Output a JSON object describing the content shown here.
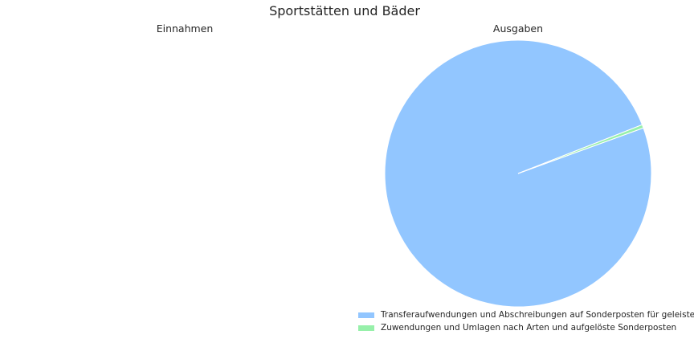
{
  "chart_data": {
    "type": "pie",
    "title": "Sportstätten und Bäder",
    "charts": [
      {
        "title": "Einnahmen",
        "slices": []
      },
      {
        "title": "Ausgaben",
        "slices": [
          {
            "label": "Transferaufwendungen und Abschreibungen auf Sonderposten für geleiste",
            "value": 99.6,
            "color": "#92c6ff"
          },
          {
            "label": "Zuwendungen und Umlagen nach Arten und aufgelöste Sonderposten",
            "value": 0.4,
            "color": "#97f0aa"
          }
        ]
      }
    ],
    "legend": {
      "placement": "bottom-right"
    }
  }
}
